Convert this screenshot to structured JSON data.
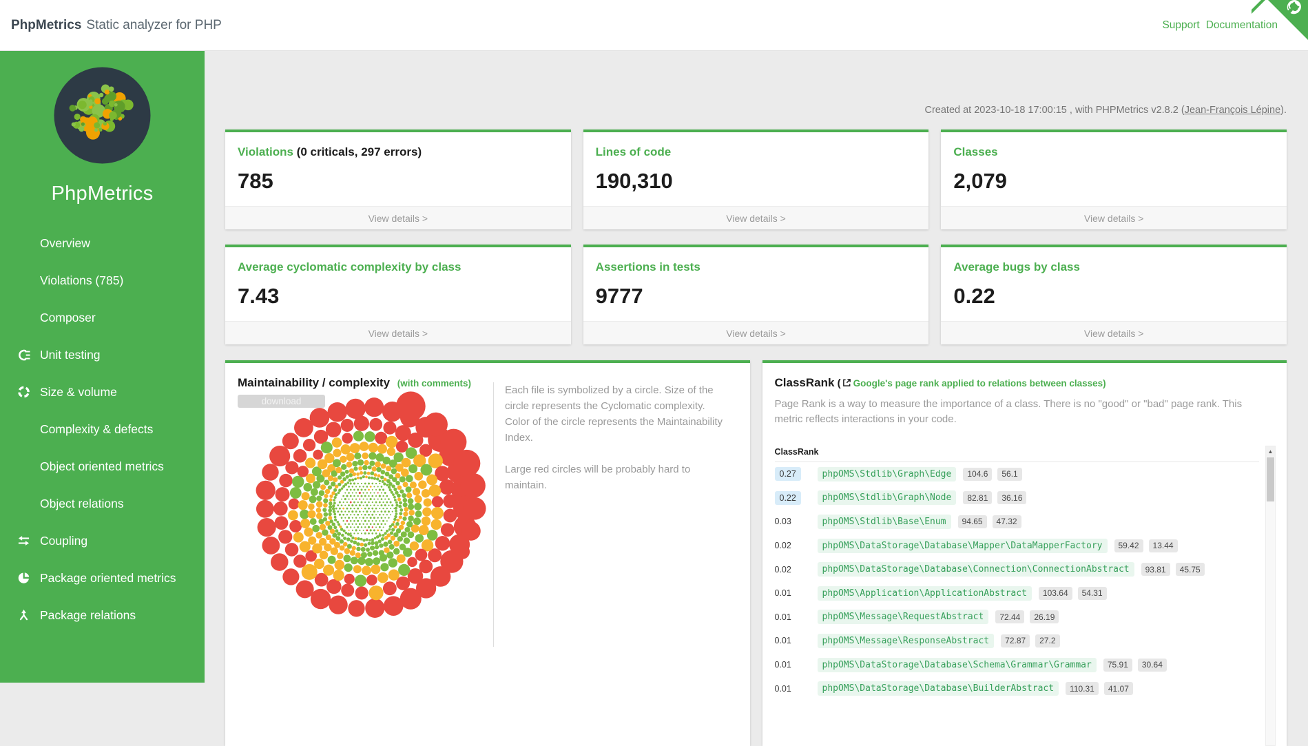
{
  "header": {
    "brand": "PhpMetrics",
    "subtitle": "Static analyzer for PHP",
    "support_link": "Support",
    "documentation_link": "Documentation"
  },
  "sidebar": {
    "title": "PhpMetrics",
    "items": [
      {
        "label": "Overview",
        "icon": ""
      },
      {
        "label": "Violations (785)",
        "icon": ""
      },
      {
        "label": "Composer",
        "icon": ""
      },
      {
        "label": "Unit testing",
        "icon": "unit-testing"
      },
      {
        "label": "Size & volume",
        "icon": "size-volume"
      },
      {
        "label": "Complexity & defects",
        "icon": ""
      },
      {
        "label": "Object oriented metrics",
        "icon": ""
      },
      {
        "label": "Object relations",
        "icon": ""
      },
      {
        "label": "Coupling",
        "icon": "coupling"
      },
      {
        "label": "Package oriented metrics",
        "icon": "package-oriented-metrics"
      },
      {
        "label": "Package relations",
        "icon": "package-relations"
      }
    ]
  },
  "meta": {
    "created_prefix": "Created at 2023-10-18 17:00:15 , with PHPMetrics v2.8.2 (",
    "author": "Jean-François Lépine",
    "created_suffix": ")."
  },
  "cards": [
    {
      "title": "Violations",
      "suffix": " (0 criticals, 297 errors)",
      "value": "785",
      "details": "View details >"
    },
    {
      "title": "Lines of code",
      "suffix": "",
      "value": "190,310",
      "details": "View details >"
    },
    {
      "title": "Classes",
      "suffix": "",
      "value": "2,079",
      "details": "View details >"
    },
    {
      "title": "Average cyclomatic complexity by class",
      "suffix": "",
      "value": "7.43",
      "details": "View details >"
    },
    {
      "title": "Assertions in tests",
      "suffix": "",
      "value": "9777",
      "details": "View details >"
    },
    {
      "title": "Average bugs by class",
      "suffix": "",
      "value": "0.22",
      "details": "View details >"
    }
  ],
  "maintainability": {
    "title": "Maintainability / complexity",
    "subtitle": "(with comments)",
    "download_label": "download",
    "paragraph1": "Each file is symbolized by a circle. Size of the circle represents the Cyclomatic complexity. Color of the circle represents the Maintainability Index.",
    "paragraph2": "Large red circles will be probably hard to maintain.",
    "chart": {
      "type": "bubble",
      "size_meaning": "Cyclomatic complexity",
      "color_meaning": "Maintainability Index",
      "colors": {
        "good": "#7dbd42",
        "medium": "#f8b32d",
        "bad": "#e8483f"
      },
      "logo_colors": {
        "bg": "#2d3a45",
        "green1": "#7cb82f",
        "green2": "#8bc34a",
        "green3": "#5f9e2a",
        "orange": "#f0a202"
      }
    }
  },
  "classrank": {
    "title": "ClassRank",
    "paren": " (",
    "subtitle": "Google's page rank applied to relations between classes)",
    "description": "Page Rank is a way to measure the importance of a class. There is no \"good\" or \"bad\" page rank. This metric reflects interactions in your code.",
    "column_header": "ClassRank",
    "scroll_up_glyph": "▲",
    "rows": [
      {
        "rank": "0.27",
        "highlight": true,
        "class": "phpOMS\\Stdlib\\Graph\\Edge",
        "m1": "104.6",
        "m2": "56.1"
      },
      {
        "rank": "0.22",
        "highlight": true,
        "class": "phpOMS\\Stdlib\\Graph\\Node",
        "m1": "82.81",
        "m2": "36.16"
      },
      {
        "rank": "0.03",
        "highlight": false,
        "class": "phpOMS\\Stdlib\\Base\\Enum",
        "m1": "94.65",
        "m2": "47.32"
      },
      {
        "rank": "0.02",
        "highlight": false,
        "class": "phpOMS\\DataStorage\\Database\\Mapper\\DataMapperFactory",
        "m1": "59.42",
        "m2": "13.44"
      },
      {
        "rank": "0.02",
        "highlight": false,
        "class": "phpOMS\\DataStorage\\Database\\Connection\\ConnectionAbstract",
        "m1": "93.81",
        "m2": "45.75"
      },
      {
        "rank": "0.01",
        "highlight": false,
        "class": "phpOMS\\Application\\ApplicationAbstract",
        "m1": "103.64",
        "m2": "54.31"
      },
      {
        "rank": "0.01",
        "highlight": false,
        "class": "phpOMS\\Message\\RequestAbstract",
        "m1": "72.44",
        "m2": "26.19"
      },
      {
        "rank": "0.01",
        "highlight": false,
        "class": "phpOMS\\Message\\ResponseAbstract",
        "m1": "72.87",
        "m2": "27.2"
      },
      {
        "rank": "0.01",
        "highlight": false,
        "class": "phpOMS\\DataStorage\\Database\\Schema\\Grammar\\Grammar",
        "m1": "75.91",
        "m2": "30.64"
      },
      {
        "rank": "0.01",
        "highlight": false,
        "class": "phpOMS\\DataStorage\\Database\\BuilderAbstract",
        "m1": "110.31",
        "m2": "41.07"
      }
    ]
  }
}
